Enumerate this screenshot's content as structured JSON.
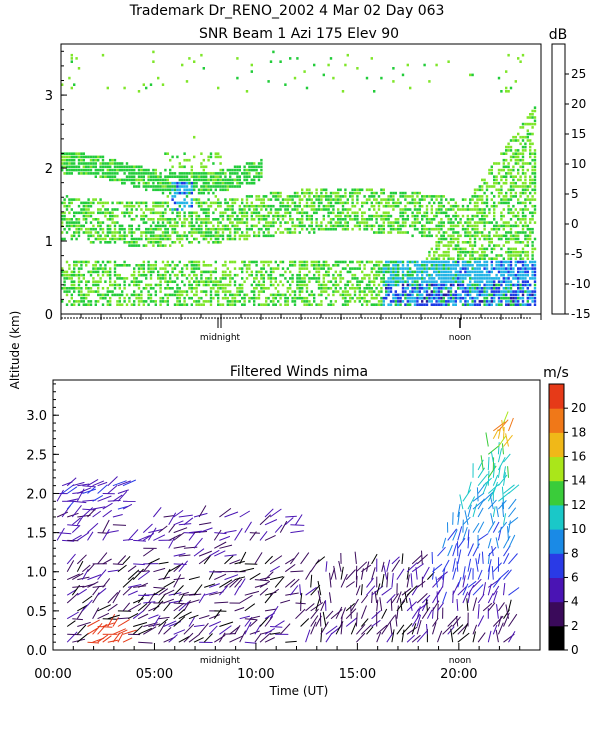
{
  "header": {
    "line1": "Trademark Dr_RENO_2002    4 Mar 02 Day 063",
    "line2": "SNR Beam 1 Azi 175 Elev 90"
  },
  "shared": {
    "ylabel": "Altitude (km)",
    "xlabel": "Time (UT)",
    "midnight_label": "midnight",
    "noon_label": "noon"
  },
  "chart_data": [
    {
      "type": "heatmap",
      "title": "SNR Beam 1 Azi 175 Elev 90",
      "ylabel": "Altitude (km)",
      "x_range_hours": [
        0,
        24
      ],
      "ylim": [
        0,
        3.7
      ],
      "yticks": [
        0,
        1,
        2,
        3
      ],
      "colorbar": {
        "unit": "dB",
        "ticks": [
          -15,
          -10,
          -5,
          0,
          5,
          10,
          15,
          20,
          25
        ],
        "range": [
          -15,
          30
        ],
        "colors": [
          "#7fe62a",
          "#22cc3a",
          "#22b4e6",
          "#1a3ae6",
          "#2a1a9a",
          "#5a1a7a",
          "#e01818",
          "#f07818",
          "#f0b818"
        ]
      },
      "markers": [
        {
          "label": "midnight",
          "hour": 7.5
        },
        {
          "label": "noon",
          "hour": 19.5
        }
      ],
      "layers": [
        {
          "name": "lower band",
          "alt_range": [
            0.1,
            0.7
          ]
        },
        {
          "name": "middle band",
          "alt_range": [
            1.0,
            1.6
          ]
        },
        {
          "name": "upper band",
          "alt_range": [
            1.6,
            2.2
          ]
        },
        {
          "name": "late-day rise",
          "alt_range": [
            0.3,
            2.8
          ]
        }
      ]
    },
    {
      "type": "scatter",
      "title": "Filtered Winds nima",
      "xlabel": "Time (UT)",
      "ylabel": "Altitude (km)",
      "xticks": [
        "00:00",
        "05:00",
        "10:00",
        "15:00",
        "20:00"
      ],
      "xtick_hours": [
        0,
        5,
        10,
        15,
        20
      ],
      "x_range_hours": [
        0,
        24
      ],
      "yticks": [
        0.0,
        0.5,
        1.0,
        1.5,
        2.0,
        2.5,
        3.0
      ],
      "ylim": [
        0,
        3.45
      ],
      "colorbar": {
        "unit": "m/s",
        "ticks": [
          0,
          2,
          4,
          6,
          8,
          10,
          12,
          14,
          16,
          18,
          20
        ],
        "range": [
          0,
          22
        ],
        "colors": [
          "#000000",
          "#3a0a5a",
          "#4a14b4",
          "#2a3ae6",
          "#1a8ae6",
          "#1ac8c8",
          "#3acc3a",
          "#aae61a",
          "#f0b818",
          "#f07818",
          "#e63a18"
        ]
      },
      "markers": [
        {
          "label": "midnight",
          "hour": 7.5
        },
        {
          "label": "noon",
          "hour": 19.5
        }
      ]
    }
  ]
}
